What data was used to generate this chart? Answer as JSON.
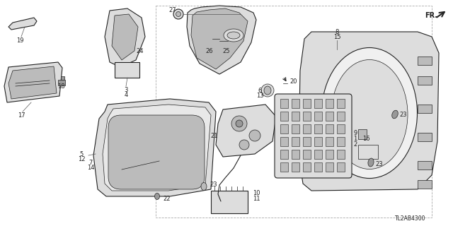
{
  "bg_color": "#ffffff",
  "diagram_code": "TL2AB4300",
  "fr_label": "FR.",
  "color_main": "#222222",
  "color_line": "#555555",
  "color_light": "#dddddd",
  "color_mid": "#bbbbbb",
  "color_dark": "#999999"
}
